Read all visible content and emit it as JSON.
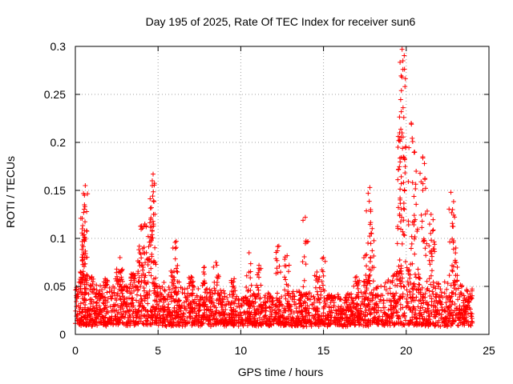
{
  "chart_data": {
    "type": "scatter",
    "title": "Day 195 of 2025, Rate Of TEC Index for receiver sun6",
    "xlabel": "GPS time / hours",
    "ylabel": "ROTI / TECUs",
    "xlim": [
      0,
      25
    ],
    "ylim": [
      0,
      0.3
    ],
    "xticks": [
      0,
      5,
      10,
      15,
      20,
      25
    ],
    "yticks": [
      0,
      0.05,
      0.1,
      0.15,
      0.2,
      0.25,
      0.3
    ],
    "xtick_labels": [
      "0",
      "5",
      "10",
      "15",
      "20",
      "25"
    ],
    "ytick_labels": [
      "0",
      "0.05",
      "0.1",
      "0.15",
      "0.2",
      "0.25",
      "0.3"
    ],
    "grid": true,
    "marker": "+",
    "series": [
      {
        "name": "ROTI",
        "color": "#ff0000",
        "baseline_envelope": [
          {
            "x": 0,
            "low": 0.01,
            "high": 0.05
          },
          {
            "x": 2,
            "low": 0.01,
            "high": 0.05
          },
          {
            "x": 4,
            "low": 0.01,
            "high": 0.06
          },
          {
            "x": 6,
            "low": 0.01,
            "high": 0.05
          },
          {
            "x": 8,
            "low": 0.01,
            "high": 0.05
          },
          {
            "x": 10,
            "low": 0.01,
            "high": 0.04
          },
          {
            "x": 12,
            "low": 0.01,
            "high": 0.045
          },
          {
            "x": 14,
            "low": 0.01,
            "high": 0.045
          },
          {
            "x": 16,
            "low": 0.01,
            "high": 0.04
          },
          {
            "x": 18,
            "low": 0.01,
            "high": 0.05
          },
          {
            "x": 19,
            "low": 0.01,
            "high": 0.06
          },
          {
            "x": 20,
            "low": 0.01,
            "high": 0.07
          },
          {
            "x": 21,
            "low": 0.01,
            "high": 0.06
          },
          {
            "x": 22,
            "low": 0.01,
            "high": 0.055
          },
          {
            "x": 24,
            "low": 0.01,
            "high": 0.05
          }
        ],
        "peaks": [
          {
            "x": 0.3,
            "y": 0.065
          },
          {
            "x": 0.5,
            "y": 0.085
          },
          {
            "x": 0.55,
            "y": 0.108
          },
          {
            "x": 0.5,
            "y": 0.127
          },
          {
            "x": 0.55,
            "y": 0.135
          },
          {
            "x": 0.55,
            "y": 0.145
          },
          {
            "x": 0.6,
            "y": 0.155
          },
          {
            "x": 1.0,
            "y": 0.06
          },
          {
            "x": 1.8,
            "y": 0.058
          },
          {
            "x": 2.5,
            "y": 0.068
          },
          {
            "x": 2.7,
            "y": 0.08
          },
          {
            "x": 3.5,
            "y": 0.063
          },
          {
            "x": 3.9,
            "y": 0.085
          },
          {
            "x": 4.0,
            "y": 0.113
          },
          {
            "x": 4.2,
            "y": 0.115
          },
          {
            "x": 4.4,
            "y": 0.102
          },
          {
            "x": 4.6,
            "y": 0.132
          },
          {
            "x": 4.65,
            "y": 0.155
          },
          {
            "x": 4.65,
            "y": 0.16
          },
          {
            "x": 4.7,
            "y": 0.167
          },
          {
            "x": 5.9,
            "y": 0.09
          },
          {
            "x": 6.1,
            "y": 0.097
          },
          {
            "x": 7.0,
            "y": 0.06
          },
          {
            "x": 7.8,
            "y": 0.07
          },
          {
            "x": 8.5,
            "y": 0.075
          },
          {
            "x": 9.6,
            "y": 0.058
          },
          {
            "x": 10.5,
            "y": 0.085
          },
          {
            "x": 11.1,
            "y": 0.072
          },
          {
            "x": 12.3,
            "y": 0.092
          },
          {
            "x": 12.8,
            "y": 0.082
          },
          {
            "x": 13.9,
            "y": 0.122
          },
          {
            "x": 14.6,
            "y": 0.065
          },
          {
            "x": 15.0,
            "y": 0.08
          },
          {
            "x": 17.0,
            "y": 0.06
          },
          {
            "x": 17.6,
            "y": 0.083
          },
          {
            "x": 17.7,
            "y": 0.147
          },
          {
            "x": 17.8,
            "y": 0.153
          },
          {
            "x": 17.9,
            "y": 0.105
          },
          {
            "x": 19.5,
            "y": 0.195
          },
          {
            "x": 19.6,
            "y": 0.21
          },
          {
            "x": 19.7,
            "y": 0.232
          },
          {
            "x": 19.75,
            "y": 0.268
          },
          {
            "x": 19.8,
            "y": 0.276
          },
          {
            "x": 19.8,
            "y": 0.285
          },
          {
            "x": 19.75,
            "y": 0.297
          },
          {
            "x": 20.3,
            "y": 0.22
          },
          {
            "x": 20.5,
            "y": 0.19
          },
          {
            "x": 20.6,
            "y": 0.17
          },
          {
            "x": 21.0,
            "y": 0.185
          },
          {
            "x": 21.1,
            "y": 0.178
          },
          {
            "x": 21.5,
            "y": 0.125
          },
          {
            "x": 21.6,
            "y": 0.108
          },
          {
            "x": 22.7,
            "y": 0.148
          },
          {
            "x": 22.8,
            "y": 0.13
          },
          {
            "x": 23.0,
            "y": 0.09
          }
        ]
      }
    ]
  }
}
